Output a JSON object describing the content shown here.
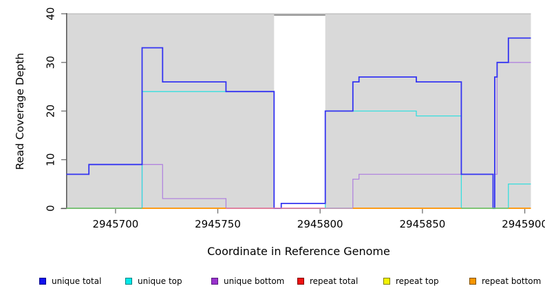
{
  "chart_data": {
    "type": "step-line",
    "title": "",
    "xlabel": "Coordinate in Reference Genome",
    "ylabel": "Read Coverage Depth",
    "xlim": [
      2945676,
      2945903
    ],
    "ylim": [
      0,
      40
    ],
    "x_ticks": [
      2945700,
      2945750,
      2945800,
      2945850,
      2945900
    ],
    "y_ticks": [
      0,
      10,
      20,
      30,
      40
    ],
    "grid": false,
    "legend_position": "bottom",
    "shade_color": "#d9d9d9",
    "shaded_regions": [
      {
        "x0": 2945676,
        "x1": 2945777.5
      },
      {
        "x0": 2945802.5,
        "x1": 2945903
      }
    ],
    "axis_colors": {
      "axis_line": "#3a3a3a",
      "tick": "#6e6e6e",
      "top_border": "#c3c3c3",
      "gap_top_line": "#8a8a8a",
      "text": "#000000"
    },
    "series": [
      {
        "name": "repeat total",
        "color": "#ee2222",
        "width": 1.0,
        "steps": [
          [
            2945676,
            0
          ]
        ]
      },
      {
        "name": "repeat top",
        "color": "#f0f000",
        "width": 1.0,
        "steps": [
          [
            2945676,
            0
          ]
        ]
      },
      {
        "name": "repeat bottom",
        "color": "#ff9100",
        "width": 1.5,
        "steps": [
          [
            2945676,
            0
          ]
        ]
      },
      {
        "name": "unique bottom",
        "color": "#b184de",
        "width": 1.3,
        "steps": [
          [
            2945676,
            0
          ],
          [
            2945713,
            9
          ],
          [
            2945723,
            2
          ],
          [
            2945754,
            0
          ],
          [
            2945816,
            6
          ],
          [
            2945819,
            7
          ],
          [
            2945886.5,
            30
          ]
        ]
      },
      {
        "name": "unique top",
        "color": "#35dede",
        "width": 1.3,
        "steps": [
          [
            2945676,
            0
          ],
          [
            2945713,
            24
          ],
          [
            2945777.5,
            0
          ],
          [
            2945802.5,
            20
          ],
          [
            2945847,
            19
          ],
          [
            2945869,
            0
          ],
          [
            2945892,
            5
          ]
        ]
      },
      {
        "name": "unique total",
        "color": "#3333f2",
        "width": 1.8,
        "steps": [
          [
            2945676,
            7
          ],
          [
            2945687,
            9
          ],
          [
            2945713,
            33
          ],
          [
            2945723,
            26
          ],
          [
            2945754,
            24
          ],
          [
            2945777.5,
            0
          ],
          [
            2945781,
            1
          ],
          [
            2945802.5,
            20
          ],
          [
            2945816,
            26
          ],
          [
            2945819,
            27
          ],
          [
            2945847,
            26
          ],
          [
            2945869,
            7
          ],
          [
            2945884.5,
            0
          ],
          [
            2945885.3,
            27
          ],
          [
            2945886.5,
            30
          ],
          [
            2945892,
            35
          ]
        ]
      }
    ],
    "baseline_segments": [
      {
        "x0": 2945676,
        "x1": 2945713,
        "color": "#6cc26c"
      },
      {
        "x0": 2945713,
        "x1": 2945754,
        "color": "#ff9100"
      },
      {
        "x0": 2945754,
        "x1": 2945802.5,
        "color": "#dc76a1"
      },
      {
        "x0": 2945802.5,
        "x1": 2945816,
        "color": "#b29bc6"
      },
      {
        "x0": 2945816,
        "x1": 2945869,
        "color": "#ff9100"
      },
      {
        "x0": 2945869,
        "x1": 2945892,
        "color": "#6cc26c"
      },
      {
        "x0": 2945892,
        "x1": 2945903,
        "color": "#ff9100"
      }
    ],
    "legend": [
      {
        "label": "unique total",
        "fill": "#1111ee",
        "border": "#000088"
      },
      {
        "label": "unique top",
        "fill": "#00e8e8",
        "border": "#007f7f"
      },
      {
        "label": "unique bottom",
        "fill": "#9932cc",
        "border": "#581b7e"
      },
      {
        "label": "repeat total",
        "fill": "#ee1111",
        "border": "#7f0000"
      },
      {
        "label": "repeat top",
        "fill": "#f2f200",
        "border": "#7f7f00"
      },
      {
        "label": "repeat bottom",
        "fill": "#f59600",
        "border": "#7f4f00"
      }
    ]
  }
}
